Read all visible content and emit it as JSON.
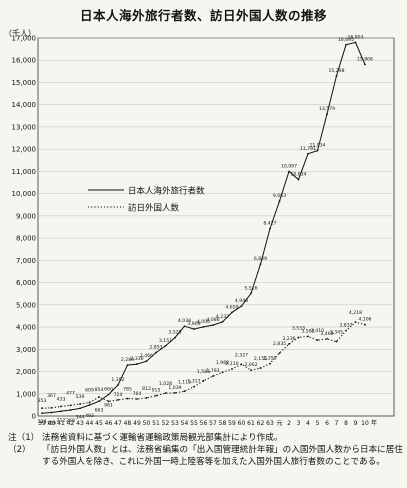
{
  "chart_data": {
    "type": "line",
    "title": "日本人海外旅行者数、訪日外国人数の推移",
    "ylabel": "（千人）",
    "xlabel": "年",
    "ylim": [
      0,
      17000
    ],
    "yticks": [
      0,
      1000,
      2000,
      3000,
      4000,
      5000,
      6000,
      7000,
      8000,
      9000,
      10000,
      11000,
      12000,
      13000,
      14000,
      15000,
      16000,
      17000
    ],
    "ytick_labels": [
      "0",
      "1,000",
      "2,000",
      "3,000",
      "4,000",
      "5,000",
      "6,000",
      "7,000",
      "8,000",
      "9,000",
      "10,000",
      "11,000",
      "12,000",
      "13,000",
      "14,000",
      "15,000",
      "16,000",
      "17,000"
    ],
    "categories": [
      "39",
      "40",
      "41",
      "42",
      "43",
      "44",
      "45",
      "46",
      "47",
      "48",
      "49",
      "50",
      "51",
      "52",
      "53",
      "54",
      "55",
      "56",
      "57",
      "58",
      "59",
      "60",
      "61",
      "62",
      "63",
      "元",
      "2",
      "3",
      "4",
      "5",
      "6",
      "7",
      "8",
      "9",
      "10"
    ],
    "x_end_label": "年",
    "grid": true,
    "legend_position": "middle-left",
    "series": [
      {
        "name": "日本人海外旅行者数",
        "style": "solid",
        "values": [
          128,
          159,
          212,
          268,
          344,
          493,
          663,
          961,
          1392,
          2289,
          2336,
          2466,
          2853,
          3151,
          3525,
          4038,
          3909,
          4006,
          4086,
          4232,
          4659,
          4948,
          5516,
          6829,
          8427,
          9663,
          10997,
          10634,
          11791,
          11934,
          13579,
          15298,
          16695,
          16803,
          15806
        ],
        "labels": [
          "128",
          "159",
          "212",
          "268",
          "344",
          "493",
          "663",
          "961",
          "1,392",
          "2,289",
          "2,336",
          "2,466",
          "2,853",
          "3,151",
          "3,525",
          "4,038",
          "3,909",
          "4,006",
          "4,086",
          "4,232",
          "4,659",
          "4,948",
          "5,516",
          "6,829",
          "8,427",
          "9,663",
          "10,997",
          "10,634",
          "11,791",
          "11,934",
          "13,579",
          "15,298",
          "16,695",
          "16,803",
          "15,806"
        ]
      },
      {
        "name": "訪日外国人数",
        "style": "dotted",
        "values": [
          353,
          367,
          433,
          477,
          539,
          609,
          854,
          660,
          724,
          785,
          764,
          812,
          915,
          1028,
          1039,
          1113,
          1317,
          1583,
          1793,
          1968,
          2110,
          2327,
          2062,
          2155,
          2355,
          2835,
          3236,
          3533,
          3582,
          3410,
          3468,
          3345,
          3837,
          4218,
          4106
        ],
        "labels": [
          "353",
          "367",
          "433",
          "477",
          "539",
          "609",
          "854",
          "660",
          "724",
          "785",
          "764",
          "812",
          "915",
          "1,028",
          "1,039",
          "1,113",
          "1,317",
          "1,583",
          "1,793",
          "1,968",
          "2,110",
          "2,327",
          "2,062",
          "2,155",
          "2,355",
          "2,835",
          "3,236",
          "3,533",
          "3,582",
          "3,410",
          "3,468",
          "3,345",
          "3,837",
          "4,218",
          "4,106"
        ]
      }
    ]
  },
  "notes": [
    {
      "marker": "注（1）",
      "text": "法務省資料に基づく運輸省運輸政策局観光部集計により作成。"
    },
    {
      "marker": "（2）",
      "text": "「訪日外国人数」とは、法務省編集の「出入国管理統計年報」の入国外国人数から日本に居住する外国人を除き、これに外国一時上陸客等を加えた入国外国人旅行者数のことである。"
    }
  ],
  "colors": {
    "line": "#111111",
    "grid": "#bdbdbd",
    "background": "#f7f5f0"
  }
}
